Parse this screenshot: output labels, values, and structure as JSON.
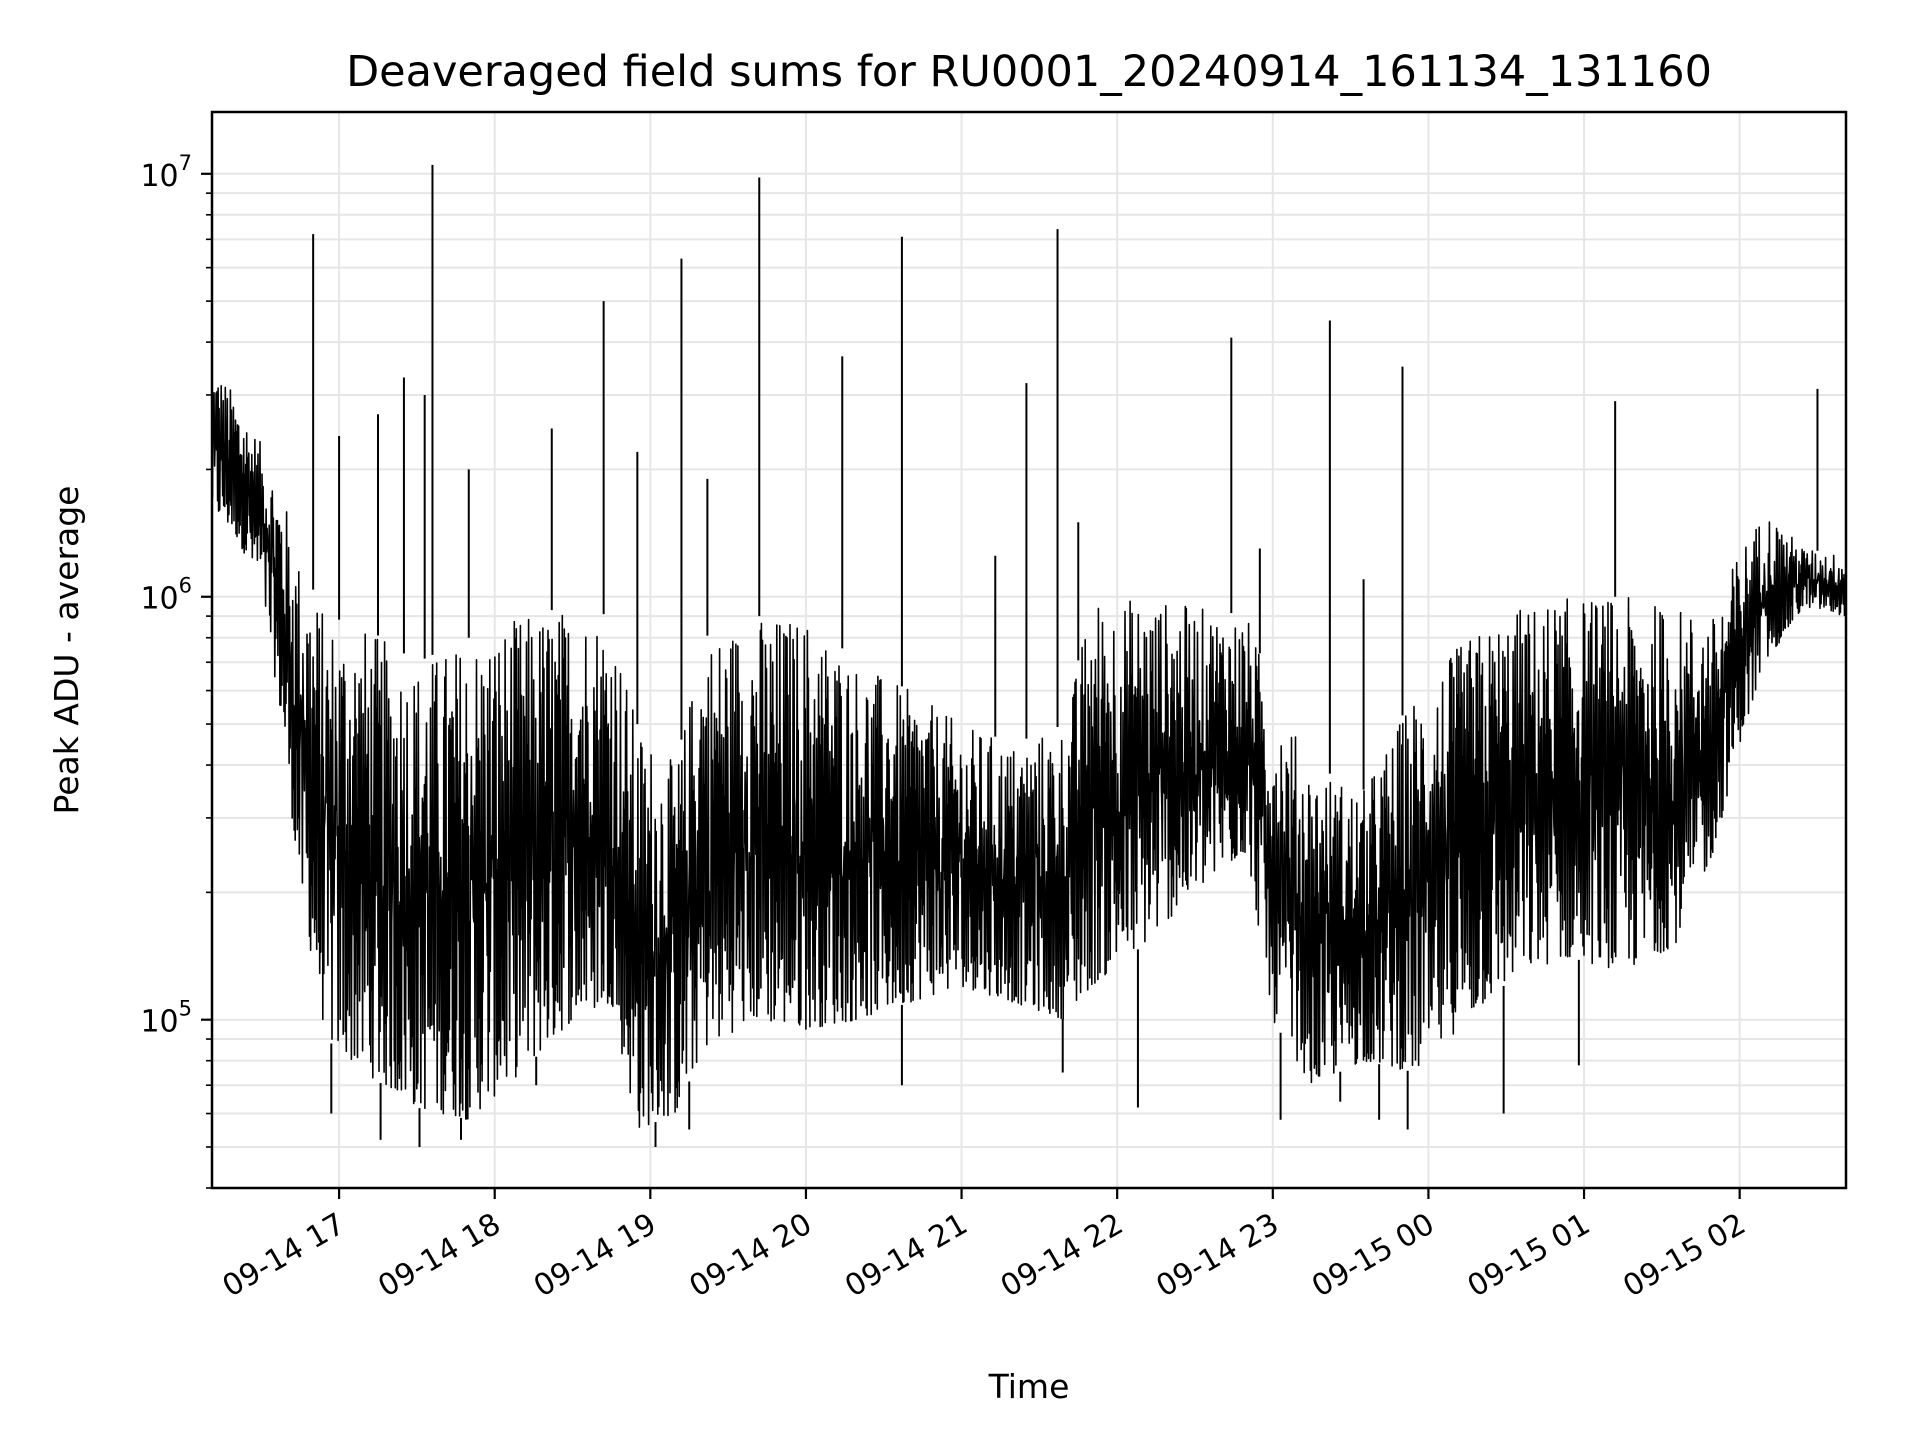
{
  "chart_data": {
    "type": "line",
    "title": "Deaveraged field sums for RU0001_20240914_161134_131160",
    "xlabel": "Time",
    "ylabel": "Peak ADU - average",
    "yscale": "log",
    "ylim": [
      40000,
      14000000
    ],
    "xlim": [
      "2024-09-14 16:11",
      "2024-09-15 02:41"
    ],
    "grid": true,
    "line_color": "#000000",
    "x_ticks": [
      {
        "time": "2024-09-14 17:00",
        "label": "09-14 17"
      },
      {
        "time": "2024-09-14 18:00",
        "label": "09-14 18"
      },
      {
        "time": "2024-09-14 19:00",
        "label": "09-14 19"
      },
      {
        "time": "2024-09-14 20:00",
        "label": "09-14 20"
      },
      {
        "time": "2024-09-14 21:00",
        "label": "09-14 21"
      },
      {
        "time": "2024-09-14 22:00",
        "label": "09-14 22"
      },
      {
        "time": "2024-09-14 23:00",
        "label": "09-14 23"
      },
      {
        "time": "2024-09-15 00:00",
        "label": "09-15 00"
      },
      {
        "time": "2024-09-15 01:00",
        "label": "09-15 01"
      },
      {
        "time": "2024-09-15 02:00",
        "label": "09-15 02"
      }
    ],
    "y_ticks": [
      {
        "value": 100000,
        "base": "10",
        "exp": "5"
      },
      {
        "value": 1000000,
        "base": "10",
        "exp": "6"
      },
      {
        "value": 10000000,
        "base": "10",
        "exp": "7"
      }
    ],
    "series": [
      {
        "band": [
          [
            "2024-09-14 16:11",
            1600000,
            3600000
          ],
          [
            "2024-09-14 16:20",
            1400000,
            3000000
          ],
          [
            "2024-09-14 16:30",
            1050000,
            2300000
          ],
          [
            "2024-09-14 16:38",
            500000,
            1800000
          ],
          [
            "2024-09-14 16:45",
            200000,
            1200000
          ],
          [
            "2024-09-14 16:55",
            90000,
            900000
          ],
          [
            "2024-09-14 17:10",
            75000,
            850000
          ],
          [
            "2024-09-14 17:30",
            62000,
            700000
          ],
          [
            "2024-09-14 17:50",
            58000,
            800000
          ],
          [
            "2024-09-14 18:10",
            75000,
            900000
          ],
          [
            "2024-09-14 18:30",
            100000,
            950000
          ],
          [
            "2024-09-14 18:45",
            110000,
            900000
          ],
          [
            "2024-09-14 18:55",
            55000,
            500000
          ],
          [
            "2024-09-14 19:10",
            60000,
            400000
          ],
          [
            "2024-09-14 19:20",
            85000,
            800000
          ],
          [
            "2024-09-14 19:40",
            100000,
            900000
          ],
          [
            "2024-09-14 20:00",
            95000,
            900000
          ],
          [
            "2024-09-14 20:20",
            100000,
            700000
          ],
          [
            "2024-09-14 20:40",
            110000,
            600000
          ],
          [
            "2024-09-14 21:00",
            120000,
            500000
          ],
          [
            "2024-09-14 21:20",
            110000,
            450000
          ],
          [
            "2024-09-14 21:40",
            100000,
            500000
          ],
          [
            "2024-09-14 21:50",
            120000,
            1000000
          ],
          [
            "2024-09-14 22:10",
            150000,
            1000000
          ],
          [
            "2024-09-14 22:30",
            200000,
            950000
          ],
          [
            "2024-09-14 22:50",
            250000,
            900000
          ],
          [
            "2024-09-14 23:00",
            100000,
            600000
          ],
          [
            "2024-09-14 23:15",
            70000,
            400000
          ],
          [
            "2024-09-14 23:35",
            80000,
            350000
          ],
          [
            "2024-09-14 23:55",
            75000,
            600000
          ],
          [
            "2024-09-15 00:15",
            100000,
            800000
          ],
          [
            "2024-09-15 00:35",
            130000,
            950000
          ],
          [
            "2024-09-15 00:55",
            140000,
            1000000
          ],
          [
            "2024-09-15 01:15",
            130000,
            1000000
          ],
          [
            "2024-09-15 01:35",
            150000,
            950000
          ],
          [
            "2024-09-15 01:50",
            250000,
            900000
          ],
          [
            "2024-09-15 02:00",
            450000,
            1300000
          ],
          [
            "2024-09-15 02:10",
            700000,
            1600000
          ],
          [
            "2024-09-15 02:25",
            950000,
            1300000
          ],
          [
            "2024-09-15 02:41",
            900000,
            1250000
          ]
        ],
        "spikes": [
          [
            "2024-09-14 16:50",
            7200000
          ],
          [
            "2024-09-14 17:00",
            2400000
          ],
          [
            "2024-09-14 17:15",
            2700000
          ],
          [
            "2024-09-14 17:25",
            3300000
          ],
          [
            "2024-09-14 17:33",
            3000000
          ],
          [
            "2024-09-14 17:36",
            10500000
          ],
          [
            "2024-09-14 17:50",
            2000000
          ],
          [
            "2024-09-14 18:22",
            2500000
          ],
          [
            "2024-09-14 18:42",
            5000000
          ],
          [
            "2024-09-14 18:55",
            2200000
          ],
          [
            "2024-09-14 19:12",
            6300000
          ],
          [
            "2024-09-14 19:22",
            1900000
          ],
          [
            "2024-09-14 19:42",
            9800000
          ],
          [
            "2024-09-14 20:14",
            3700000
          ],
          [
            "2024-09-14 20:37",
            7100000
          ],
          [
            "2024-09-14 21:13",
            1250000
          ],
          [
            "2024-09-14 21:25",
            3200000
          ],
          [
            "2024-09-14 21:37",
            7400000
          ],
          [
            "2024-09-14 21:45",
            1500000
          ],
          [
            "2024-09-14 22:44",
            4100000
          ],
          [
            "2024-09-14 22:55",
            1300000
          ],
          [
            "2024-09-14 23:22",
            4500000
          ],
          [
            "2024-09-14 23:35",
            1100000
          ],
          [
            "2024-09-14 23:50",
            3500000
          ],
          [
            "2024-09-15 01:12",
            2900000
          ],
          [
            "2024-09-15 02:30",
            3100000
          ]
        ],
        "dips": [
          [
            "2024-09-14 16:57",
            60000
          ],
          [
            "2024-09-14 17:16",
            52000
          ],
          [
            "2024-09-14 17:31",
            50000
          ],
          [
            "2024-09-14 17:47",
            52000
          ],
          [
            "2024-09-14 18:16",
            70000
          ],
          [
            "2024-09-14 19:02",
            50000
          ],
          [
            "2024-09-14 19:15",
            55000
          ],
          [
            "2024-09-14 20:37",
            70000
          ],
          [
            "2024-09-14 21:39",
            75000
          ],
          [
            "2024-09-14 22:08",
            62000
          ],
          [
            "2024-09-14 23:03",
            58000
          ],
          [
            "2024-09-14 23:26",
            64000
          ],
          [
            "2024-09-14 23:41",
            58000
          ],
          [
            "2024-09-14 23:52",
            55000
          ],
          [
            "2024-09-15 00:29",
            60000
          ],
          [
            "2024-09-15 00:58",
            78000
          ]
        ]
      }
    ]
  }
}
